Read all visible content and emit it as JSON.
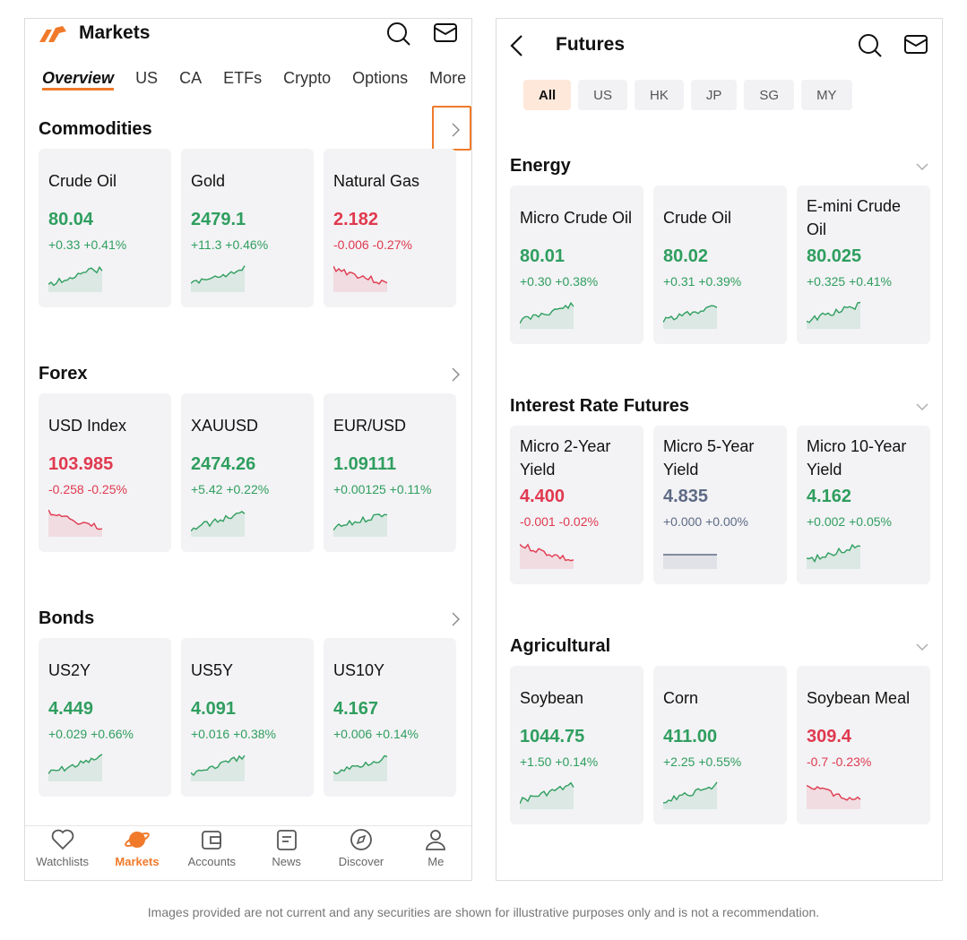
{
  "left": {
    "title": "Markets",
    "tabs": [
      "Overview",
      "US",
      "CA",
      "ETFs",
      "Crypto",
      "Options",
      "More"
    ],
    "sections": [
      {
        "title": "Commodities",
        "cards": [
          {
            "name": "Crude Oil",
            "price": "80.04",
            "change": "+0.33 +0.41%",
            "color": "#2f9e5f"
          },
          {
            "name": "Gold",
            "price": "2479.1",
            "change": "+11.3 +0.46%",
            "color": "#2f9e5f"
          },
          {
            "name": "Natural Gas",
            "price": "2.182",
            "change": "-0.006 -0.27%",
            "color": "#e0394f"
          }
        ]
      },
      {
        "title": "Forex",
        "cards": [
          {
            "name": "USD Index",
            "price": "103.985",
            "change": "-0.258 -0.25%",
            "color": "#e0394f"
          },
          {
            "name": "XAUUSD",
            "price": "2474.26",
            "change": "+5.42 +0.22%",
            "color": "#2f9e5f"
          },
          {
            "name": "EUR/USD",
            "price": "1.09111",
            "change": "+0.00125 +0.11%",
            "color": "#2f9e5f"
          }
        ]
      },
      {
        "title": "Bonds",
        "cards": [
          {
            "name": "US2Y",
            "price": "4.449",
            "change": "+0.029 +0.66%",
            "color": "#2f9e5f"
          },
          {
            "name": "US5Y",
            "price": "4.091",
            "change": "+0.016 +0.38%",
            "color": "#2f9e5f"
          },
          {
            "name": "US10Y",
            "price": "4.167",
            "change": "+0.006 +0.14%",
            "color": "#2f9e5f"
          }
        ]
      }
    ],
    "nav": [
      "Watchlists",
      "Markets",
      "Accounts",
      "News",
      "Discover",
      "Me"
    ]
  },
  "right": {
    "title": "Futures",
    "filters": [
      "All",
      "US",
      "HK",
      "JP",
      "SG",
      "MY"
    ],
    "sections": [
      {
        "title": "Energy",
        "cards": [
          {
            "name": "Micro Crude Oil",
            "price": "80.01",
            "change": "+0.30 +0.38%",
            "color": "#2f9e5f"
          },
          {
            "name": "Crude Oil",
            "price": "80.02",
            "change": "+0.31 +0.39%",
            "color": "#2f9e5f"
          },
          {
            "name": "E-mini Crude Oil",
            "price": "80.025",
            "change": "+0.325 +0.41%",
            "color": "#2f9e5f"
          }
        ]
      },
      {
        "title": "Interest Rate Futures",
        "cards": [
          {
            "name": "Micro 2-Year Yield",
            "price": "4.400",
            "change": "-0.001 -0.02%",
            "color": "#e0394f"
          },
          {
            "name": "Micro 5-Year Yield",
            "price": "4.835",
            "change": "+0.000 +0.00%",
            "color": "#5d6a85"
          },
          {
            "name": "Micro 10-Year Yield",
            "price": "4.162",
            "change": "+0.002 +0.05%",
            "color": "#2f9e5f"
          }
        ]
      },
      {
        "title": "Agricultural",
        "cards": [
          {
            "name": "Soybean",
            "price": "1044.75",
            "change": "+1.50 +0.14%",
            "color": "#2f9e5f"
          },
          {
            "name": "Corn",
            "price": "411.00",
            "change": "+2.25 +0.55%",
            "color": "#2f9e5f"
          },
          {
            "name": "Soybean Meal",
            "price": "309.4",
            "change": "-0.7 -0.23%",
            "color": "#e0394f"
          }
        ]
      }
    ]
  },
  "disclaimer": "Images provided are not current and any securities are shown for illustrative purposes only and is not a recommendation."
}
